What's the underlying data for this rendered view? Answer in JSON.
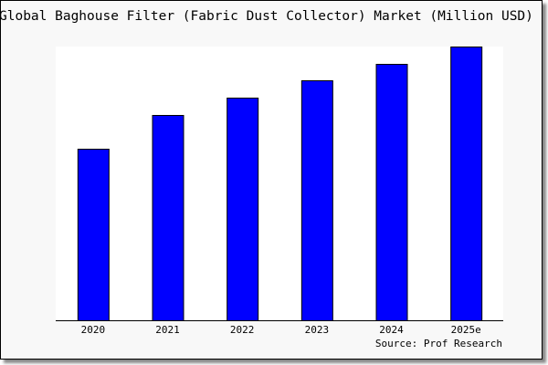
{
  "chart_data": {
    "type": "bar",
    "title": "Global Baghouse Filter (Fabric Dust Collector) Market (Million USD)",
    "categories": [
      "2020",
      "2021",
      "2022",
      "2023",
      "2024",
      "2025e"
    ],
    "values": [
      188,
      225,
      244,
      263,
      281,
      300
    ],
    "ylim": [
      0,
      300
    ],
    "xlabel": "",
    "ylabel": "",
    "grid": false,
    "source": "Source: Prof Research",
    "colors": {
      "bar": "#0000ff",
      "bar_border": "#000000",
      "plot_bg": "#ffffff",
      "frame_bg": "#f8f8f8"
    }
  }
}
